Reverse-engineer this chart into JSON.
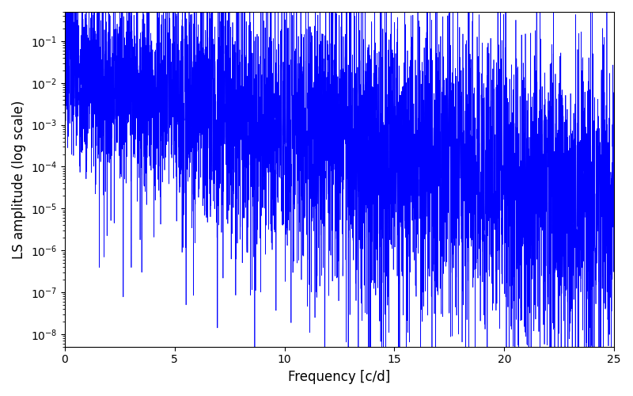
{
  "title": "",
  "xlabel": "Frequency [c/d]",
  "ylabel": "LS amplitude (log scale)",
  "xlim": [
    0,
    25
  ],
  "ylim_low": 5e-09,
  "ylim_high": 0.5,
  "color": "#0000ff",
  "linewidth": 0.5,
  "yscale": "log",
  "figsize": [
    8.0,
    5.0
  ],
  "dpi": 100,
  "seed": 7,
  "n_points": 5000,
  "xmax": 25.0
}
